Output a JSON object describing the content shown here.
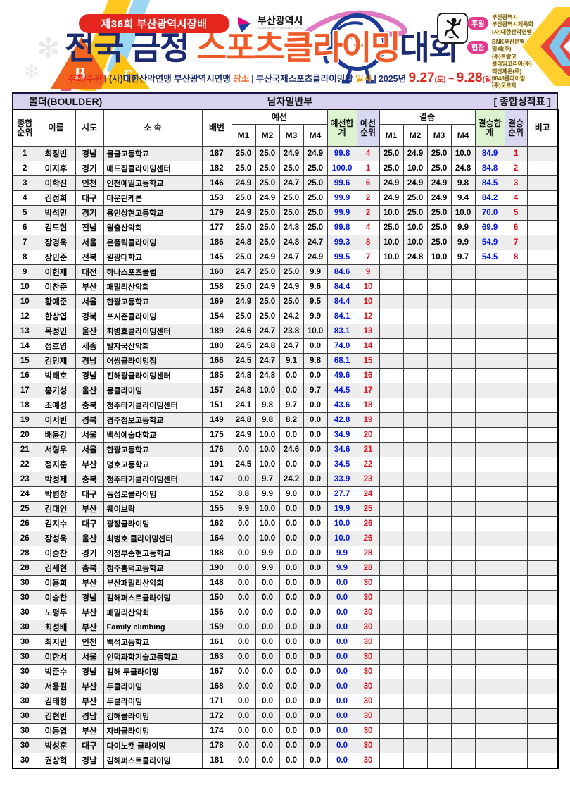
{
  "banner": {
    "edition_badge": "제36회 부산광역시장배",
    "busan_logo": {
      "name": "부산광역시",
      "subtitle": "BUSAN METROPOLITAN CITY"
    },
    "logo_letters": {
      "b": "B",
      "f": "F"
    },
    "title": {
      "prefix": "전국 금정 ",
      "highlight": "스포츠클라이밍",
      "suffix": "대회"
    },
    "info": {
      "divider": "|",
      "organizer_label": "주최/주관",
      "organizer": "(사)대한산악연맹 부산광역시연맹",
      "venue_label": "장소",
      "venue": "부산국제스포츠클라이밍장",
      "date_label": "일시",
      "date_year": "2025년",
      "date_start": "9.27",
      "date_start_day": "(토)",
      "date_sep": "~",
      "date_end": "9.28",
      "date_end_day": "(일)"
    },
    "sponsor_label": "후원",
    "sponsors": [
      "부산광역시",
      "부산광역시체육회",
      "(사)대한산악연맹"
    ],
    "partner_label": "협찬",
    "partners": [
      "BNK부산은행",
      "밀레(주)",
      "(주)트랑고",
      "클라임코리아(주)",
      "백산제온(주)",
      "8848클라이밍",
      "(주)오르자"
    ]
  },
  "table": {
    "title_left": "볼더(BOULDER)",
    "title_center": "남자일반부",
    "title_right": "[ 종합성적표 ]",
    "headers": {
      "overall_rank": "종합순위",
      "name": "이름",
      "region": "시도",
      "club": "소 속",
      "bib": "배번",
      "prelim_group": "예선",
      "final_group": "결승",
      "m_cols": [
        "M1",
        "M2",
        "M3",
        "M4"
      ],
      "prelim_sum": "예선합계",
      "prelim_rank": "예선순위",
      "final_sum": "결승합계",
      "final_rank": "결승순위",
      "note": "비고"
    },
    "colors": {
      "sum_text": "#0016dd",
      "rank_text": "#e30613",
      "sum_header_bg": "#dbf3cf",
      "rank_header_bg": "#d8d8f3",
      "title_bar_bg": "#d9d2ee"
    },
    "rows": [
      {
        "rank": "1",
        "name": "최정빈",
        "region": "경남",
        "club": "물금고등학교",
        "bib": "187",
        "p": [
          "25.0",
          "25.0",
          "24.9",
          "24.9"
        ],
        "psum": "99.8",
        "prank": "4",
        "f": [
          "25.0",
          "24.9",
          "25.0",
          "10.0"
        ],
        "fsum": "84.9",
        "frank": "1",
        "note": ""
      },
      {
        "rank": "2",
        "name": "이지후",
        "region": "경기",
        "club": "매드짐클라이밍센터",
        "bib": "182",
        "p": [
          "25.0",
          "25.0",
          "25.0",
          "25.0"
        ],
        "psum": "100.0",
        "prank": "1",
        "f": [
          "25.0",
          "10.0",
          "25.0",
          "24.8"
        ],
        "fsum": "84.8",
        "frank": "2",
        "note": ""
      },
      {
        "rank": "3",
        "name": "이학진",
        "region": "인천",
        "club": "인천예일고등학교",
        "bib": "146",
        "p": [
          "24.9",
          "25.0",
          "24.7",
          "25.0"
        ],
        "psum": "99.6",
        "prank": "6",
        "f": [
          "24.9",
          "24.9",
          "24.9",
          "9.8"
        ],
        "fsum": "84.5",
        "frank": "3",
        "note": ""
      },
      {
        "rank": "4",
        "name": "김정회",
        "region": "대구",
        "club": "마운틴케른",
        "bib": "153",
        "p": [
          "25.0",
          "24.9",
          "25.0",
          "25.0"
        ],
        "psum": "99.9",
        "prank": "2",
        "f": [
          "24.9",
          "25.0",
          "24.9",
          "9.4"
        ],
        "fsum": "84.2",
        "frank": "4",
        "note": ""
      },
      {
        "rank": "5",
        "name": "박석민",
        "region": "경기",
        "club": "용인상현고등학교",
        "bib": "179",
        "p": [
          "24.9",
          "25.0",
          "25.0",
          "25.0"
        ],
        "psum": "99.9",
        "prank": "2",
        "f": [
          "10.0",
          "25.0",
          "25.0",
          "10.0"
        ],
        "fsum": "70.0",
        "frank": "5",
        "note": ""
      },
      {
        "rank": "6",
        "name": "김도현",
        "region": "전남",
        "club": "월출산악회",
        "bib": "177",
        "p": [
          "25.0",
          "25.0",
          "24.8",
          "25.0"
        ],
        "psum": "99.8",
        "prank": "4",
        "f": [
          "25.0",
          "10.0",
          "25.0",
          "9.9"
        ],
        "fsum": "69.9",
        "frank": "6",
        "note": ""
      },
      {
        "rank": "7",
        "name": "장경욱",
        "region": "서울",
        "club": "온플릭클라이밍",
        "bib": "186",
        "p": [
          "24.8",
          "25.0",
          "24.8",
          "24.7"
        ],
        "psum": "99.3",
        "prank": "8",
        "f": [
          "10.0",
          "10.0",
          "25.0",
          "9.9"
        ],
        "fsum": "54.9",
        "frank": "7",
        "note": ""
      },
      {
        "rank": "8",
        "name": "장민준",
        "region": "전북",
        "club": "원광대학교",
        "bib": "145",
        "p": [
          "25.0",
          "24.9",
          "24.7",
          "24.9"
        ],
        "psum": "99.5",
        "prank": "7",
        "f": [
          "10.0",
          "24.8",
          "10.0",
          "9.7"
        ],
        "fsum": "54.5",
        "frank": "8",
        "note": ""
      },
      {
        "rank": "9",
        "name": "이헌재",
        "region": "대전",
        "club": "하나스포츠클럽",
        "bib": "160",
        "p": [
          "24.7",
          "25.0",
          "25.0",
          "9.9"
        ],
        "psum": "84.6",
        "prank": "9",
        "f": [
          "",
          "",
          "",
          ""
        ],
        "fsum": "",
        "frank": "",
        "note": ""
      },
      {
        "rank": "10",
        "name": "이찬준",
        "region": "부산",
        "club": "패밀리산악회",
        "bib": "158",
        "p": [
          "25.0",
          "24.9",
          "24.9",
          "9.6"
        ],
        "psum": "84.4",
        "prank": "10",
        "f": [
          "",
          "",
          "",
          ""
        ],
        "fsum": "",
        "frank": "",
        "note": ""
      },
      {
        "rank": "10",
        "name": "황예준",
        "region": "서울",
        "club": "한광고등학교",
        "bib": "169",
        "p": [
          "24.9",
          "25.0",
          "25.0",
          "9.5"
        ],
        "psum": "84.4",
        "prank": "10",
        "f": [
          "",
          "",
          "",
          ""
        ],
        "fsum": "",
        "frank": "",
        "note": ""
      },
      {
        "rank": "12",
        "name": "한상엽",
        "region": "경북",
        "club": "포시즌클라이밍",
        "bib": "154",
        "p": [
          "25.0",
          "25.0",
          "24.2",
          "9.9"
        ],
        "psum": "84.1",
        "prank": "12",
        "f": [
          "",
          "",
          "",
          ""
        ],
        "fsum": "",
        "frank": "",
        "note": ""
      },
      {
        "rank": "13",
        "name": "목정민",
        "region": "울산",
        "club": "최병호클라이밍센터",
        "bib": "189",
        "p": [
          "24.6",
          "24.7",
          "23.8",
          "10.0"
        ],
        "psum": "83.1",
        "prank": "13",
        "f": [
          "",
          "",
          "",
          ""
        ],
        "fsum": "",
        "frank": "",
        "note": ""
      },
      {
        "rank": "14",
        "name": "정호영",
        "region": "세종",
        "club": "발자국산악회",
        "bib": "180",
        "p": [
          "24.5",
          "24.8",
          "24.7",
          "0.0"
        ],
        "psum": "74.0",
        "prank": "14",
        "f": [
          "",
          "",
          "",
          ""
        ],
        "fsum": "",
        "frank": "",
        "note": ""
      },
      {
        "rank": "15",
        "name": "김민재",
        "region": "경남",
        "club": "어썸클라이밍짐",
        "bib": "166",
        "p": [
          "24.5",
          "24.7",
          "9.1",
          "9.8"
        ],
        "psum": "68.1",
        "prank": "15",
        "f": [
          "",
          "",
          "",
          ""
        ],
        "fsum": "",
        "frank": "",
        "note": ""
      },
      {
        "rank": "16",
        "name": "박태호",
        "region": "경남",
        "club": "진해광클라이밍센터",
        "bib": "185",
        "p": [
          "24.8",
          "24.8",
          "0.0",
          "0.0"
        ],
        "psum": "49.6",
        "prank": "16",
        "f": [
          "",
          "",
          "",
          ""
        ],
        "fsum": "",
        "frank": "",
        "note": ""
      },
      {
        "rank": "17",
        "name": "홍기성",
        "region": "울산",
        "club": "몽클라이밍",
        "bib": "157",
        "p": [
          "24.8",
          "10.0",
          "0.0",
          "9.7"
        ],
        "psum": "44.5",
        "prank": "17",
        "f": [
          "",
          "",
          "",
          ""
        ],
        "fsum": "",
        "frank": "",
        "note": ""
      },
      {
        "rank": "18",
        "name": "조예성",
        "region": "충북",
        "club": "청주타기클라이밍센터",
        "bib": "151",
        "p": [
          "24.1",
          "9.8",
          "9.7",
          "0.0"
        ],
        "psum": "43.6",
        "prank": "18",
        "f": [
          "",
          "",
          "",
          ""
        ],
        "fsum": "",
        "frank": "",
        "note": ""
      },
      {
        "rank": "19",
        "name": "이서빈",
        "region": "경북",
        "club": "경주정보고등학교",
        "bib": "149",
        "p": [
          "24.8",
          "9.8",
          "8.2",
          "0.0"
        ],
        "psum": "42.8",
        "prank": "19",
        "f": [
          "",
          "",
          "",
          ""
        ],
        "fsum": "",
        "frank": "",
        "note": ""
      },
      {
        "rank": "20",
        "name": "배윤강",
        "region": "서울",
        "club": "백석예술대학교",
        "bib": "175",
        "p": [
          "24.9",
          "10.0",
          "0.0",
          "0.0"
        ],
        "psum": "34.9",
        "prank": "20",
        "f": [
          "",
          "",
          "",
          ""
        ],
        "fsum": "",
        "frank": "",
        "note": ""
      },
      {
        "rank": "21",
        "name": "서형우",
        "region": "서울",
        "club": "한광고등학교",
        "bib": "176",
        "p": [
          "0.0",
          "10.0",
          "24.6",
          "0.0"
        ],
        "psum": "34.6",
        "prank": "21",
        "f": [
          "",
          "",
          "",
          ""
        ],
        "fsum": "",
        "frank": "",
        "note": ""
      },
      {
        "rank": "22",
        "name": "정지훈",
        "region": "부산",
        "club": "명호고등학교",
        "bib": "191",
        "p": [
          "24.5",
          "10.0",
          "0.0",
          "0.0"
        ],
        "psum": "34.5",
        "prank": "22",
        "f": [
          "",
          "",
          "",
          ""
        ],
        "fsum": "",
        "frank": "",
        "note": ""
      },
      {
        "rank": "23",
        "name": "박정제",
        "region": "충북",
        "club": "청주타기클라이밍센터",
        "bib": "147",
        "p": [
          "0.0",
          "9.7",
          "24.2",
          "0.0"
        ],
        "psum": "33.9",
        "prank": "23",
        "f": [
          "",
          "",
          "",
          ""
        ],
        "fsum": "",
        "frank": "",
        "note": ""
      },
      {
        "rank": "24",
        "name": "박병창",
        "region": "대구",
        "club": "동성로클라이밍",
        "bib": "152",
        "p": [
          "8.8",
          "9.9",
          "9.0",
          "0.0"
        ],
        "psum": "27.7",
        "prank": "24",
        "f": [
          "",
          "",
          "",
          ""
        ],
        "fsum": "",
        "frank": "",
        "note": ""
      },
      {
        "rank": "25",
        "name": "김대언",
        "region": "부산",
        "club": "웨이브락",
        "bib": "155",
        "p": [
          "9.9",
          "10.0",
          "0.0",
          "0.0"
        ],
        "psum": "19.9",
        "prank": "25",
        "f": [
          "",
          "",
          "",
          ""
        ],
        "fsum": "",
        "frank": "",
        "note": ""
      },
      {
        "rank": "26",
        "name": "김지수",
        "region": "대구",
        "club": "광장클라이밍",
        "bib": "162",
        "p": [
          "0.0",
          "10.0",
          "0.0",
          "0.0"
        ],
        "psum": "10.0",
        "prank": "26",
        "f": [
          "",
          "",
          "",
          ""
        ],
        "fsum": "",
        "frank": "",
        "note": ""
      },
      {
        "rank": "26",
        "name": "장성욱",
        "region": "울산",
        "club": "최병호 클라이밍센터",
        "bib": "164",
        "p": [
          "0.0",
          "10.0",
          "0.0",
          "0.0"
        ],
        "psum": "10.0",
        "prank": "26",
        "f": [
          "",
          "",
          "",
          ""
        ],
        "fsum": "",
        "frank": "",
        "note": ""
      },
      {
        "rank": "28",
        "name": "이승찬",
        "region": "경기",
        "club": "의정부송현고등학교",
        "bib": "188",
        "p": [
          "0.0",
          "9.9",
          "0.0",
          "0.0"
        ],
        "psum": "9.9",
        "prank": "28",
        "f": [
          "",
          "",
          "",
          ""
        ],
        "fsum": "",
        "frank": "",
        "note": ""
      },
      {
        "rank": "28",
        "name": "김세현",
        "region": "충북",
        "club": "청주흥덕고등학교",
        "bib": "190",
        "p": [
          "0.0",
          "9.9",
          "0.0",
          "0.0"
        ],
        "psum": "9.9",
        "prank": "28",
        "f": [
          "",
          "",
          "",
          ""
        ],
        "fsum": "",
        "frank": "",
        "note": ""
      },
      {
        "rank": "30",
        "name": "이용희",
        "region": "부산",
        "club": "부산패밀리산악회",
        "bib": "148",
        "p": [
          "0.0",
          "0.0",
          "0.0",
          "0.0"
        ],
        "psum": "0.0",
        "prank": "30",
        "f": [
          "",
          "",
          "",
          ""
        ],
        "fsum": "",
        "frank": "",
        "note": ""
      },
      {
        "rank": "30",
        "name": "이승찬",
        "region": "경남",
        "club": "김해퍼스트클라이밍",
        "bib": "150",
        "p": [
          "0.0",
          "0.0",
          "0.0",
          "0.0"
        ],
        "psum": "0.0",
        "prank": "30",
        "f": [
          "",
          "",
          "",
          ""
        ],
        "fsum": "",
        "frank": "",
        "note": ""
      },
      {
        "rank": "30",
        "name": "노평두",
        "region": "부산",
        "club": "패밀리산악회",
        "bib": "156",
        "p": [
          "0.0",
          "0.0",
          "0.0",
          "0.0"
        ],
        "psum": "0.0",
        "prank": "30",
        "f": [
          "",
          "",
          "",
          ""
        ],
        "fsum": "",
        "frank": "",
        "note": ""
      },
      {
        "rank": "30",
        "name": "최성배",
        "region": "부산",
        "club": "Family climbing",
        "bib": "159",
        "p": [
          "0.0",
          "0.0",
          "0.0",
          "0.0"
        ],
        "psum": "0.0",
        "prank": "30",
        "f": [
          "",
          "",
          "",
          ""
        ],
        "fsum": "",
        "frank": "",
        "note": ""
      },
      {
        "rank": "30",
        "name": "최지민",
        "region": "인천",
        "club": "백석고등학교",
        "bib": "161",
        "p": [
          "0.0",
          "0.0",
          "0.0",
          "0.0"
        ],
        "psum": "0.0",
        "prank": "30",
        "f": [
          "",
          "",
          "",
          ""
        ],
        "fsum": "",
        "frank": "",
        "note": ""
      },
      {
        "rank": "30",
        "name": "이한서",
        "region": "서울",
        "club": "인덕과학기술고등학교",
        "bib": "163",
        "p": [
          "0.0",
          "0.0",
          "0.0",
          "0.0"
        ],
        "psum": "0.0",
        "prank": "30",
        "f": [
          "",
          "",
          "",
          ""
        ],
        "fsum": "",
        "frank": "",
        "note": ""
      },
      {
        "rank": "30",
        "name": "박준수",
        "region": "경남",
        "club": "김해 두클라이밍",
        "bib": "167",
        "p": [
          "0.0",
          "0.0",
          "0.0",
          "0.0"
        ],
        "psum": "0.0",
        "prank": "30",
        "f": [
          "",
          "",
          "",
          ""
        ],
        "fsum": "",
        "frank": "",
        "note": ""
      },
      {
        "rank": "30",
        "name": "서용원",
        "region": "부산",
        "club": "두클라이밍",
        "bib": "168",
        "p": [
          "0.0",
          "0.0",
          "0.0",
          "0.0"
        ],
        "psum": "0.0",
        "prank": "30",
        "f": [
          "",
          "",
          "",
          ""
        ],
        "fsum": "",
        "frank": "",
        "note": ""
      },
      {
        "rank": "30",
        "name": "김태형",
        "region": "부산",
        "club": "두클라이밍",
        "bib": "171",
        "p": [
          "0.0",
          "0.0",
          "0.0",
          "0.0"
        ],
        "psum": "0.0",
        "prank": "30",
        "f": [
          "",
          "",
          "",
          ""
        ],
        "fsum": "",
        "frank": "",
        "note": ""
      },
      {
        "rank": "30",
        "name": "김현빈",
        "region": "경남",
        "club": "김해클라이밍",
        "bib": "172",
        "p": [
          "0.0",
          "0.0",
          "0.0",
          "0.0"
        ],
        "psum": "0.0",
        "prank": "30",
        "f": [
          "",
          "",
          "",
          ""
        ],
        "fsum": "",
        "frank": "",
        "note": ""
      },
      {
        "rank": "30",
        "name": "이동엽",
        "region": "부산",
        "club": "자바클라이밍",
        "bib": "174",
        "p": [
          "0.0",
          "0.0",
          "0.0",
          "0.0"
        ],
        "psum": "0.0",
        "prank": "30",
        "f": [
          "",
          "",
          "",
          ""
        ],
        "fsum": "",
        "frank": "",
        "note": ""
      },
      {
        "rank": "30",
        "name": "박성훈",
        "region": "대구",
        "club": "다이노캣 클라이밍",
        "bib": "178",
        "p": [
          "0.0",
          "0.0",
          "0.0",
          "0.0"
        ],
        "psum": "0.0",
        "prank": "30",
        "f": [
          "",
          "",
          "",
          ""
        ],
        "fsum": "",
        "frank": "",
        "note": ""
      },
      {
        "rank": "30",
        "name": "권상혁",
        "region": "경남",
        "club": "김해퍼스트클라이밍",
        "bib": "181",
        "p": [
          "0.0",
          "0.0",
          "0.0",
          "0.0"
        ],
        "psum": "0.0",
        "prank": "30",
        "f": [
          "",
          "",
          "",
          ""
        ],
        "fsum": "",
        "frank": "",
        "note": ""
      }
    ]
  }
}
